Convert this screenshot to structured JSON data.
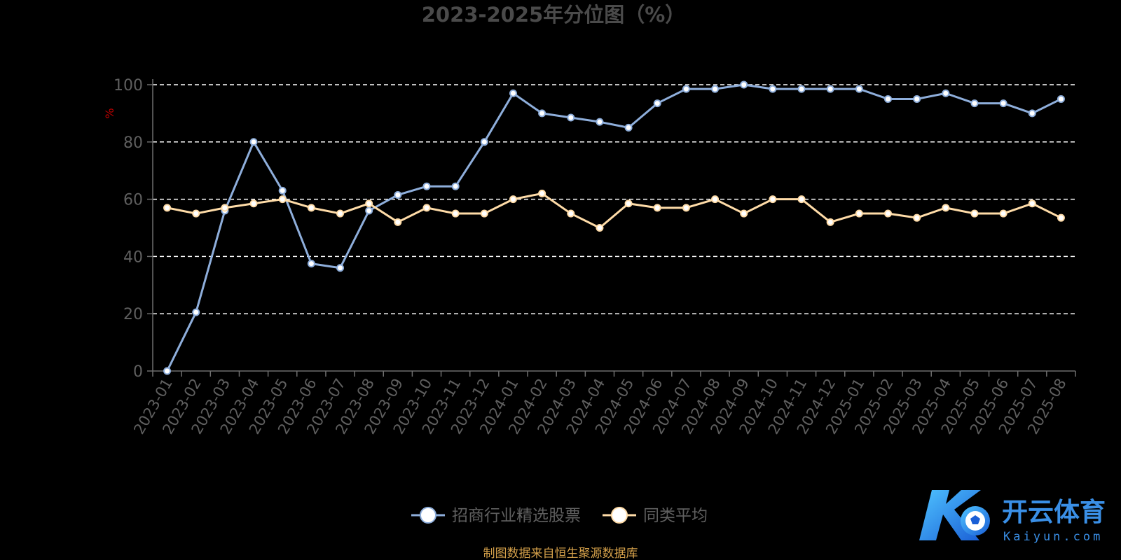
{
  "chart_data": {
    "type": "line",
    "title": "2023-2025年分位图（%）",
    "ylabel": "%",
    "xlabel": "",
    "ylim": [
      0,
      100
    ],
    "yticks": [
      0,
      20,
      40,
      60,
      80,
      100
    ],
    "grid": true,
    "legend_position": "bottom-center",
    "categories": [
      "2023-01",
      "2023-02",
      "2023-03",
      "2023-04",
      "2023-05",
      "2023-06",
      "2023-07",
      "2023-08",
      "2023-09",
      "2023-10",
      "2023-11",
      "2023-12",
      "2024-01",
      "2024-02",
      "2024-03",
      "2024-04",
      "2024-05",
      "2024-06",
      "2024-07",
      "2024-08",
      "2024-09",
      "2024-10",
      "2024-11",
      "2024-12",
      "2025-01",
      "2025-02",
      "2025-03",
      "2025-04",
      "2025-05",
      "2025-06",
      "2025-07",
      "2025-08"
    ],
    "series": [
      {
        "name": "招商行业精选股票",
        "color": "#8eaedb",
        "values": [
          0,
          20.5,
          56,
          80,
          63,
          37.5,
          36,
          56,
          61.5,
          64.5,
          64.5,
          80,
          97,
          90,
          88.5,
          87,
          85,
          93.5,
          98.5,
          98.5,
          100,
          98.5,
          98.5,
          98.5,
          98.5,
          95,
          95,
          97,
          93.5,
          93.5,
          90,
          95
        ]
      },
      {
        "name": "同类平均",
        "color": "#ffdca8",
        "values": [
          57,
          55,
          57,
          58.5,
          60,
          57,
          55,
          58.5,
          52,
          57,
          55,
          55,
          60,
          62,
          55,
          50,
          58.5,
          57,
          57,
          60,
          55,
          60,
          60,
          52,
          55,
          55,
          53.5,
          57,
          55,
          55,
          58.5,
          53.5
        ]
      }
    ]
  },
  "footer": {
    "source": "制图数据来自恒生聚源数据库"
  },
  "watermark": {
    "brand_cn": "开云体育",
    "brand_en": "Kaiyun.com",
    "icon": "kaiyun-logo-icon"
  }
}
